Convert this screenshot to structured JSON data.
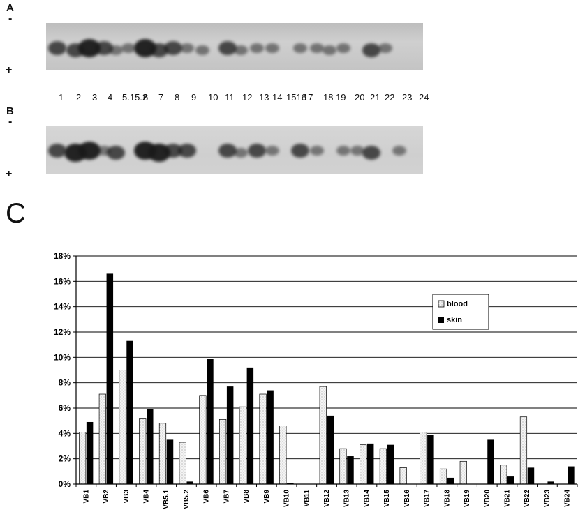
{
  "panels": {
    "a_label": "A",
    "b_label": "B",
    "c_label": "C",
    "minus": "-",
    "plus": "+"
  },
  "lanes": [
    "1",
    "2",
    "3",
    "4",
    "5.1",
    "5.2",
    "6",
    "7",
    "8",
    "9",
    "10",
    "11",
    "12",
    "13",
    "14",
    "15",
    "16",
    "17",
    "18",
    "19",
    "20",
    "21",
    "22",
    "23",
    "24"
  ],
  "lane_row_text": [
    "1",
    "2",
    "3",
    "4",
    "5.15.2",
    "6",
    "7",
    "8",
    "9",
    "10",
    "11",
    "12",
    "13",
    "14",
    "1516",
    "17",
    "18",
    "19",
    "20",
    "21",
    "22",
    "23",
    "24"
  ],
  "chart_data": {
    "type": "bar",
    "categories": [
      "VB1",
      "VB2",
      "VB3",
      "VB4",
      "VB5.1",
      "VB5.2",
      "VB6",
      "VB7",
      "VB8",
      "VB9",
      "VB10",
      "VB11",
      "VB12",
      "VB13",
      "VB14",
      "VB15",
      "VB16",
      "VB17",
      "VB18",
      "VB19",
      "VB20",
      "VB21",
      "VB22",
      "VB23",
      "VB24"
    ],
    "series": [
      {
        "name": "blood",
        "color": "#f2f2f2",
        "values": [
          4.1,
          7.1,
          9.0,
          5.2,
          4.8,
          3.3,
          7.0,
          5.1,
          6.1,
          7.1,
          4.6,
          0.0,
          7.7,
          2.8,
          3.1,
          2.8,
          1.3,
          4.1,
          1.2,
          1.8,
          0.0,
          1.5,
          5.3,
          0.0,
          0.0
        ]
      },
      {
        "name": "skin",
        "color": "#000000",
        "values": [
          4.9,
          16.6,
          11.3,
          5.9,
          3.5,
          0.2,
          9.9,
          7.7,
          9.2,
          7.4,
          0.1,
          0.0,
          5.4,
          2.2,
          3.2,
          3.1,
          0.0,
          3.9,
          0.5,
          0.0,
          3.5,
          0.6,
          1.3,
          0.2,
          1.4
        ]
      }
    ],
    "ylim": [
      0,
      18
    ],
    "yticks": [
      "0%",
      "2%",
      "4%",
      "6%",
      "8%",
      "10%",
      "12%",
      "14%",
      "16%",
      "18%"
    ],
    "grid": true,
    "legend_position": "upper-right"
  }
}
